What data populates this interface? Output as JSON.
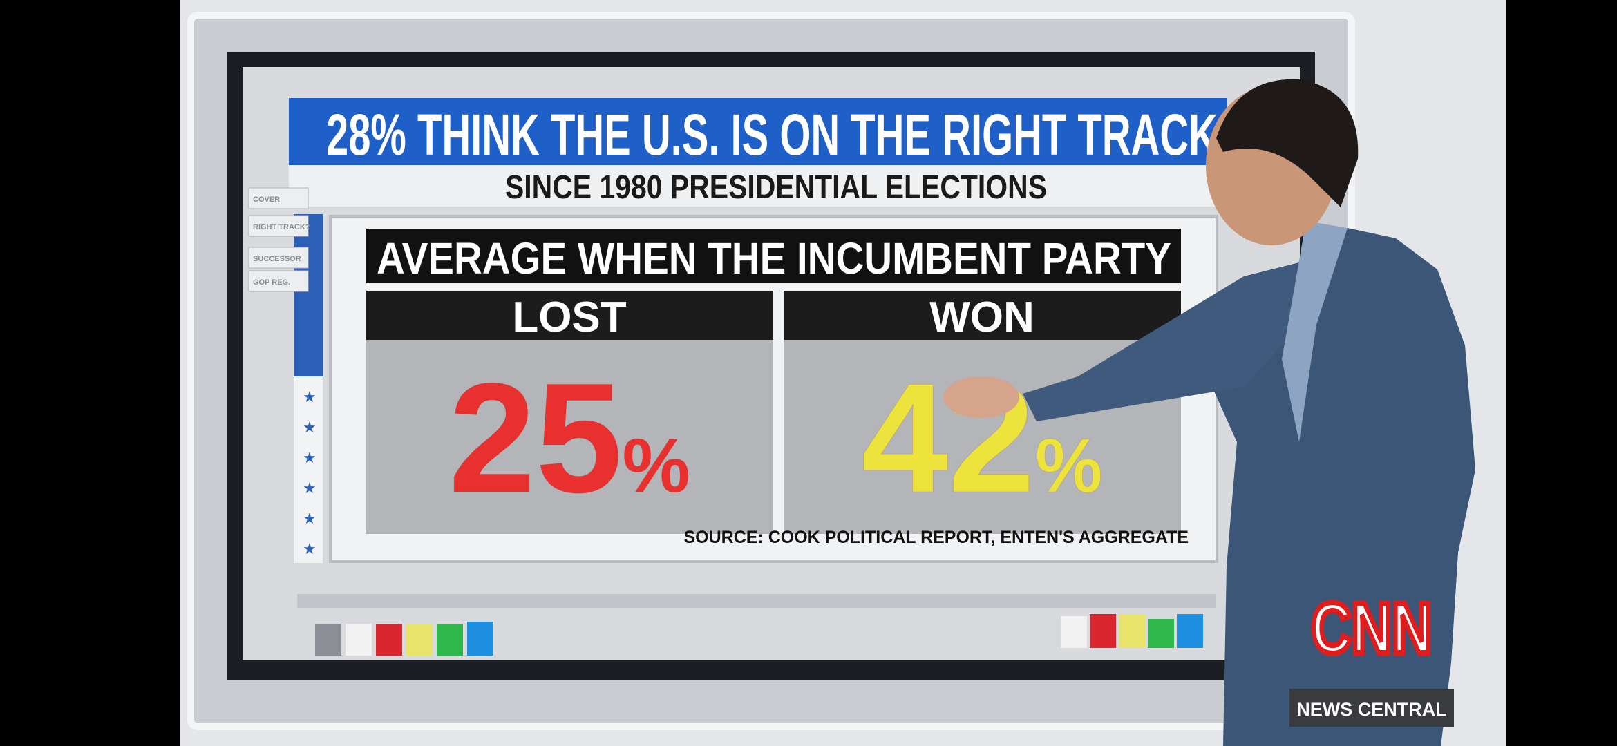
{
  "header": {
    "title": "28% THINK THE U.S. IS ON THE RIGHT TRACK",
    "subtitle": "SINCE 1980 PRESIDENTIAL ELECTIONS"
  },
  "panel": {
    "title": "AVERAGE WHEN THE INCUMBENT PARTY",
    "columns": [
      {
        "label": "LOST",
        "value": 25,
        "unit": "%"
      },
      {
        "label": "WON",
        "value": 42,
        "unit": "%"
      }
    ],
    "source": "SOURCE: COOK POLITICAL REPORT, ENTEN'S AGGREGATE"
  },
  "sidebar": [
    "COVER",
    "RIGHT TRACK?",
    "SUCCESSOR",
    "GOP REG."
  ],
  "logo": "CNN",
  "show": "NEWS CENTRAL"
}
